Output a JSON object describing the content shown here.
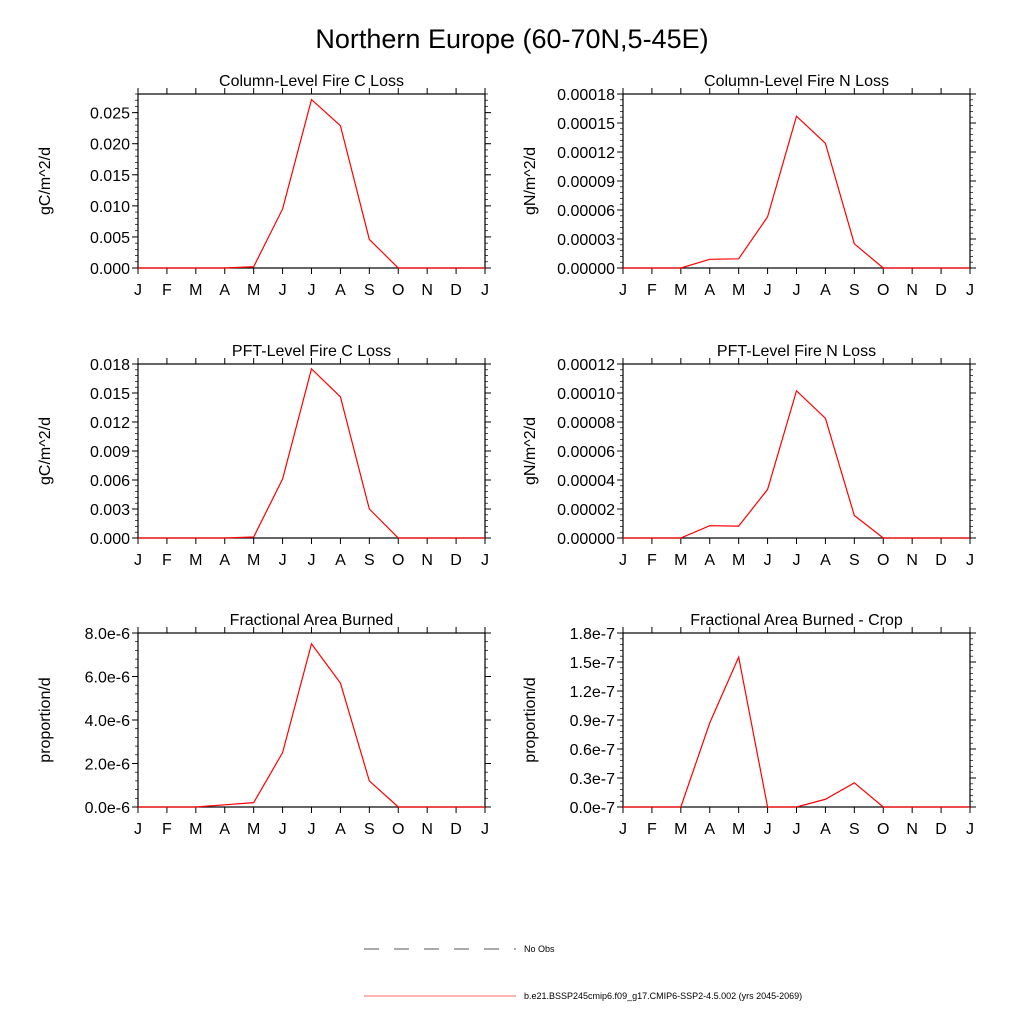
{
  "title": "Northern Europe (60-70N,5-45E)",
  "line_color": "#ff0000",
  "chart_data": [
    {
      "type": "line",
      "title": "Column-Level Fire C Loss",
      "ylabel": "gC/m^2/d",
      "ylim": [
        0,
        0.028
      ],
      "yticks": [
        0,
        0.005,
        0.01,
        0.015,
        0.02,
        0.025
      ],
      "ytick_labels": [
        "0.000",
        "0.005",
        "0.010",
        "0.015",
        "0.020",
        "0.025"
      ],
      "categories": [
        "J",
        "F",
        "M",
        "A",
        "M",
        "J",
        "J",
        "A",
        "S",
        "O",
        "N",
        "D",
        "J"
      ],
      "values": [
        0,
        0,
        0,
        0,
        0.0002,
        0.0095,
        0.0271,
        0.0229,
        0.0046,
        0,
        0,
        0,
        0
      ]
    },
    {
      "type": "line",
      "title": "Column-Level Fire N Loss",
      "ylabel": "gN/m^2/d",
      "ylim": [
        0,
        0.00018
      ],
      "yticks": [
        0,
        3e-05,
        6e-05,
        9e-05,
        0.00012,
        0.00015,
        0.00018
      ],
      "ytick_labels": [
        "0.00000",
        "0.00003",
        "0.00006",
        "0.00009",
        "0.00012",
        "0.00015",
        "0.00018"
      ],
      "categories": [
        "J",
        "F",
        "M",
        "A",
        "M",
        "J",
        "J",
        "A",
        "S",
        "O",
        "N",
        "D",
        "J"
      ],
      "values": [
        0,
        0,
        0,
        9e-06,
        9.5e-06,
        5.3e-05,
        0.000157,
        0.000129,
        2.5e-05,
        0,
        0,
        0,
        0
      ]
    },
    {
      "type": "line",
      "title": "PFT-Level Fire C Loss",
      "ylabel": "gC/m^2/d",
      "ylim": [
        0,
        0.018
      ],
      "yticks": [
        0,
        0.003,
        0.006,
        0.009,
        0.012,
        0.015,
        0.018
      ],
      "ytick_labels": [
        "0.000",
        "0.003",
        "0.006",
        "0.009",
        "0.012",
        "0.015",
        "0.018"
      ],
      "categories": [
        "J",
        "F",
        "M",
        "A",
        "M",
        "J",
        "J",
        "A",
        "S",
        "O",
        "N",
        "D",
        "J"
      ],
      "values": [
        0,
        0,
        0,
        0,
        0.0001,
        0.0061,
        0.0175,
        0.0146,
        0.003,
        0,
        0,
        0,
        0
      ]
    },
    {
      "type": "line",
      "title": "PFT-Level Fire N Loss",
      "ylabel": "gN/m^2/d",
      "ylim": [
        0,
        0.00012
      ],
      "yticks": [
        0,
        2e-05,
        4e-05,
        6e-05,
        8e-05,
        0.0001,
        0.00012
      ],
      "ytick_labels": [
        "0.00000",
        "0.00002",
        "0.00004",
        "0.00006",
        "0.00008",
        "0.00010",
        "0.00012"
      ],
      "categories": [
        "J",
        "F",
        "M",
        "A",
        "M",
        "J",
        "J",
        "A",
        "S",
        "O",
        "N",
        "D",
        "J"
      ],
      "values": [
        0,
        0,
        0,
        8.5e-06,
        8.2e-06,
        3.35e-05,
        0.0001015,
        8.25e-05,
        1.55e-05,
        0,
        0,
        0,
        0
      ]
    },
    {
      "type": "line",
      "title": "Fractional Area Burned",
      "ylabel": "proportion/d",
      "ylim": [
        0,
        8e-06
      ],
      "yticks": [
        0,
        2e-06,
        4e-06,
        6e-06,
        8e-06
      ],
      "ytick_labels": [
        "0.0e-6",
        "2.0e-6",
        "4.0e-6",
        "6.0e-6",
        "8.0e-6"
      ],
      "categories": [
        "J",
        "F",
        "M",
        "A",
        "M",
        "J",
        "J",
        "A",
        "S",
        "O",
        "N",
        "D",
        "J"
      ],
      "values": [
        0,
        0,
        0,
        1e-07,
        2e-07,
        2.5e-06,
        7.5e-06,
        5.7e-06,
        1.2e-06,
        0,
        0,
        0,
        0
      ]
    },
    {
      "type": "line",
      "title": "Fractional Area Burned - Crop",
      "ylabel": "proportion/d",
      "ylim": [
        0,
        1.8e-07
      ],
      "yticks": [
        0,
        3e-08,
        6e-08,
        9e-08,
        1.2e-07,
        1.5e-07,
        1.8e-07
      ],
      "ytick_labels": [
        "0.0e-7",
        "0.3e-7",
        "0.6e-7",
        "0.9e-7",
        "1.2e-7",
        "1.5e-7",
        "1.8e-7"
      ],
      "categories": [
        "J",
        "F",
        "M",
        "A",
        "M",
        "J",
        "J",
        "A",
        "S",
        "O",
        "N",
        "D",
        "J"
      ],
      "values": [
        0,
        0,
        0,
        8.7e-08,
        1.55e-07,
        0,
        0,
        8e-09,
        2.5e-08,
        0,
        0,
        0,
        0
      ]
    }
  ],
  "legend": [
    {
      "label": "No Obs",
      "style": "dashed",
      "color": "#555555"
    },
    {
      "label": "b.e21.BSSP245cmip6.f09_g17.CMIP6-SSP2-4.5.002 (yrs 2045-2069)",
      "style": "solid",
      "color": "#ff0000"
    }
  ]
}
